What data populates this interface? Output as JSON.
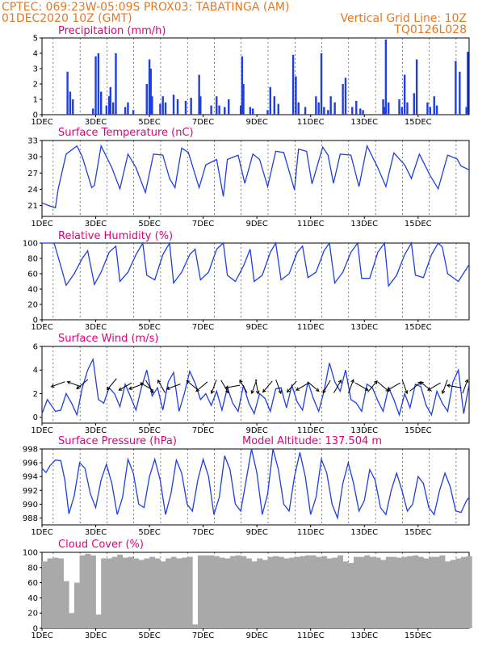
{
  "header": {
    "line1_left": "CPTEC:   069:23W-05:09S   PROX03: TABATINGA (AM)",
    "line2_left": "01DEC2020 10Z (GMT)",
    "line2_right": "Vertical Grid Line: 10Z",
    "line3_right": "TQ0126L028"
  },
  "colors": {
    "header": "#e87722",
    "panel_title": "#e0007a",
    "series": "#1f3fe0",
    "cloud": "#a9a9a9",
    "arrow": "#000000"
  },
  "chart_data": [
    {
      "type": "bar",
      "title": "Precipitation (mm/h)",
      "ylim": [
        0,
        5
      ],
      "yticks": [
        0,
        1,
        2,
        3,
        4,
        5
      ],
      "xlim": [
        1,
        16.9
      ],
      "xticks": [
        "1DEC",
        "3DEC",
        "5DEC",
        "7DEC",
        "9DEC",
        "11DEC",
        "13DEC",
        "15DEC"
      ],
      "x": [
        1.95,
        2.05,
        2.15,
        2.9,
        3.0,
        3.1,
        3.2,
        3.4,
        3.5,
        3.55,
        3.65,
        3.75,
        4.1,
        4.2,
        4.4,
        4.9,
        5.0,
        5.05,
        5.1,
        5.4,
        5.5,
        5.6,
        5.9,
        6.05,
        6.35,
        6.55,
        6.85,
        6.9,
        7.3,
        7.5,
        7.6,
        7.8,
        7.95,
        8.4,
        8.45,
        8.5,
        8.75,
        8.85,
        9.4,
        9.5,
        9.65,
        9.8,
        10.35,
        10.45,
        10.55,
        10.8,
        11.2,
        11.3,
        11.4,
        11.5,
        11.65,
        11.75,
        11.9,
        12.2,
        12.3,
        12.55,
        12.7,
        12.85,
        12.95,
        13.7,
        13.75,
        13.8,
        13.9,
        14.3,
        14.4,
        14.5,
        14.6,
        14.85,
        14.95,
        15.35,
        15.45,
        15.6,
        15.7,
        16.4,
        16.55,
        16.8,
        16.85
      ],
      "values": [
        2.8,
        1.5,
        1.0,
        0.4,
        3.8,
        4.0,
        1.5,
        0.6,
        1.2,
        1.8,
        0.8,
        4.0,
        0.5,
        0.8,
        0.3,
        2.0,
        3.6,
        3.0,
        1.2,
        0.7,
        1.2,
        0.8,
        1.3,
        1.0,
        0.9,
        1.1,
        2.6,
        1.2,
        0.6,
        1.2,
        0.6,
        0.5,
        1.0,
        0.6,
        3.8,
        2.0,
        0.5,
        0.4,
        0.3,
        1.8,
        1.2,
        0.7,
        3.9,
        2.5,
        0.8,
        0.5,
        1.2,
        0.8,
        4.0,
        0.5,
        0.3,
        1.2,
        0.8,
        2.0,
        2.4,
        0.5,
        0.9,
        0.4,
        0.3,
        1.0,
        0.5,
        4.9,
        0.8,
        1.0,
        0.5,
        2.6,
        0.8,
        1.4,
        3.6,
        0.8,
        0.5,
        1.2,
        0.6,
        3.5,
        2.8,
        0.5,
        4.1
      ]
    },
    {
      "type": "line",
      "title": "Surface Temperature (nC)",
      "ylim": [
        19,
        33
      ],
      "yticks": [
        21,
        24,
        27,
        30,
        33
      ],
      "xlim": [
        1,
        16.9
      ],
      "xticks": [
        "1DEC",
        "3DEC",
        "5DEC",
        "7DEC",
        "9DEC",
        "11DEC",
        "13DEC",
        "15DEC"
      ],
      "x": [
        1.0,
        1.25,
        1.5,
        1.6,
        1.9,
        2.3,
        2.5,
        2.85,
        2.95,
        3.2,
        3.6,
        3.9,
        4.2,
        4.5,
        4.85,
        5.15,
        5.5,
        5.75,
        5.95,
        6.2,
        6.45,
        6.85,
        7.1,
        7.5,
        7.75,
        7.9,
        8.3,
        8.55,
        8.85,
        9.1,
        9.4,
        9.7,
        10.0,
        10.4,
        10.55,
        10.85,
        11.05,
        11.45,
        11.65,
        11.85,
        12.1,
        12.5,
        12.8,
        13.1,
        13.5,
        13.8,
        14.1,
        14.5,
        14.75,
        15.05,
        15.45,
        15.75,
        16.1,
        16.45,
        16.6,
        16.9
      ],
      "values": [
        21.5,
        21.0,
        20.6,
        24.0,
        30.5,
        32.0,
        30.0,
        24.3,
        24.7,
        32.0,
        28.0,
        24.1,
        30.5,
        28.0,
        23.4,
        30.5,
        30.3,
        26.0,
        24.3,
        31.6,
        30.8,
        24.3,
        28.5,
        29.5,
        22.7,
        29.5,
        30.3,
        25.1,
        30.5,
        29.5,
        24.5,
        31.0,
        30.8,
        23.9,
        31.4,
        31.0,
        25.0,
        31.8,
        30.3,
        25.1,
        30.5,
        30.3,
        24.5,
        32.0,
        28.0,
        24.5,
        30.7,
        28.5,
        26.0,
        30.5,
        26.5,
        24.1,
        30.3,
        29.6,
        28.3,
        27.6
      ]
    },
    {
      "type": "line",
      "title": "Relative Humidity (%)",
      "ylim": [
        0,
        100
      ],
      "yticks": [
        0,
        20,
        40,
        60,
        80,
        100
      ],
      "xlim": [
        1,
        16.9
      ],
      "xticks": [
        "1DEC",
        "3DEC",
        "5DEC",
        "7DEC",
        "9DEC",
        "11DEC",
        "13DEC",
        "15DEC"
      ],
      "x": [
        1.0,
        1.3,
        1.45,
        1.7,
        1.9,
        2.2,
        2.5,
        2.7,
        2.95,
        3.2,
        3.5,
        3.75,
        3.9,
        4.2,
        4.5,
        4.75,
        4.9,
        5.2,
        5.5,
        5.75,
        5.9,
        6.2,
        6.5,
        6.7,
        6.9,
        7.2,
        7.5,
        7.75,
        7.9,
        8.2,
        8.5,
        8.75,
        8.9,
        9.2,
        9.5,
        9.7,
        9.9,
        10.2,
        10.5,
        10.7,
        10.9,
        11.2,
        11.5,
        11.7,
        11.9,
        12.2,
        12.5,
        12.75,
        12.9,
        13.2,
        13.5,
        13.75,
        13.9,
        14.2,
        14.5,
        14.75,
        14.9,
        15.2,
        15.5,
        15.75,
        15.9,
        16.1,
        16.5,
        16.9
      ],
      "values": [
        100,
        100,
        100,
        70,
        45,
        60,
        80,
        90,
        46,
        62,
        88,
        96,
        50,
        62,
        85,
        100,
        58,
        52,
        85,
        100,
        48,
        62,
        85,
        92,
        52,
        62,
        92,
        100,
        58,
        50,
        70,
        92,
        50,
        58,
        88,
        100,
        52,
        60,
        88,
        96,
        55,
        62,
        90,
        100,
        48,
        62,
        88,
        100,
        54,
        54,
        88,
        100,
        44,
        58,
        85,
        100,
        58,
        55,
        85,
        100,
        95,
        60,
        50,
        72
      ]
    },
    {
      "type": "line",
      "title": "Surface Wind (m/s)",
      "ylim": [
        -0.5,
        6
      ],
      "yticks": [
        0,
        2,
        4,
        6
      ],
      "xlim": [
        1,
        16.9
      ],
      "xticks": [
        "1DEC",
        "3DEC",
        "5DEC",
        "7DEC",
        "9DEC",
        "11DEC",
        "13DEC",
        "15DEC"
      ],
      "x": [
        1.0,
        1.2,
        1.5,
        1.7,
        1.9,
        2.1,
        2.3,
        2.5,
        2.7,
        2.9,
        3.1,
        3.3,
        3.5,
        3.7,
        3.9,
        4.1,
        4.3,
        4.5,
        4.7,
        4.9,
        5.1,
        5.3,
        5.5,
        5.7,
        5.9,
        6.1,
        6.3,
        6.5,
        6.7,
        6.9,
        7.1,
        7.3,
        7.5,
        7.7,
        7.9,
        8.1,
        8.3,
        8.5,
        8.7,
        8.9,
        9.1,
        9.3,
        9.5,
        9.7,
        9.9,
        10.1,
        10.3,
        10.5,
        10.7,
        10.9,
        11.1,
        11.3,
        11.5,
        11.7,
        11.9,
        12.1,
        12.3,
        12.5,
        12.7,
        12.9,
        13.1,
        13.3,
        13.5,
        13.7,
        13.9,
        14.1,
        14.3,
        14.5,
        14.7,
        14.9,
        15.1,
        15.3,
        15.5,
        15.7,
        15.9,
        16.1,
        16.3,
        16.5,
        16.7,
        16.9
      ],
      "values": [
        0.3,
        1.5,
        0.5,
        0.6,
        2.0,
        1.2,
        0.2,
        2.5,
        4.0,
        4.9,
        1.5,
        1.2,
        2.5,
        2.0,
        0.9,
        2.8,
        1.7,
        0.6,
        2.5,
        4.0,
        1.8,
        2.5,
        0.6,
        3.0,
        3.8,
        0.5,
        2.0,
        3.9,
        2.9,
        1.5,
        2.0,
        1.0,
        2.2,
        0.6,
        2.5,
        1.2,
        0.5,
        2.7,
        1.2,
        0.3,
        2.0,
        1.6,
        0.5,
        2.4,
        2.5,
        0.8,
        2.7,
        1.3,
        0.6,
        3.0,
        1.6,
        0.5,
        2.2,
        4.6,
        3.0,
        2.2,
        4.0,
        1.5,
        1.2,
        0.5,
        2.8,
        2.5,
        1.4,
        0.5,
        2.5,
        1.5,
        0.2,
        2.0,
        0.8,
        2.8,
        2.6,
        1.0,
        0.2,
        2.2,
        1.2,
        0.5,
        3.0,
        4.0,
        0.3,
        2.8
      ]
    },
    {
      "type": "line",
      "title": "Surface Pressure (hPa)",
      "annotation": "Model Altitude: 137.504  m",
      "ylim": [
        987,
        998
      ],
      "yticks": [
        988,
        990,
        992,
        994,
        996,
        998
      ],
      "xlim": [
        1,
        16.9
      ],
      "xticks": [
        "1DEC",
        "3DEC",
        "5DEC",
        "7DEC",
        "9DEC",
        "11DEC",
        "13DEC",
        "15DEC"
      ],
      "x": [
        1.0,
        1.15,
        1.3,
        1.5,
        1.7,
        1.85,
        2.0,
        2.2,
        2.4,
        2.6,
        2.8,
        3.0,
        3.2,
        3.4,
        3.6,
        3.8,
        4.0,
        4.2,
        4.4,
        4.6,
        4.8,
        5.0,
        5.2,
        5.4,
        5.6,
        5.8,
        6.0,
        6.2,
        6.4,
        6.6,
        6.8,
        7.0,
        7.2,
        7.4,
        7.6,
        7.8,
        8.0,
        8.2,
        8.4,
        8.6,
        8.8,
        9.0,
        9.2,
        9.4,
        9.6,
        9.8,
        10.0,
        10.2,
        10.4,
        10.6,
        10.8,
        11.0,
        11.2,
        11.4,
        11.6,
        11.8,
        12.0,
        12.2,
        12.4,
        12.6,
        12.8,
        13.0,
        13.2,
        13.4,
        13.6,
        13.8,
        14.0,
        14.2,
        14.4,
        14.6,
        14.8,
        15.0,
        15.2,
        15.4,
        15.6,
        15.8,
        16.0,
        16.2,
        16.4,
        16.6,
        16.8,
        16.9
      ],
      "values": [
        995.2,
        994.6,
        995.6,
        996.4,
        996.3,
        993.5,
        988.6,
        991.2,
        996.0,
        995.2,
        991.5,
        989.5,
        993.5,
        995.8,
        993.0,
        988.5,
        991.0,
        996.5,
        994.5,
        990.0,
        989.5,
        994.0,
        996.5,
        993.5,
        988.5,
        991.5,
        996.4,
        994.5,
        990.0,
        989.0,
        993.5,
        996.5,
        994.0,
        988.5,
        991.0,
        997.0,
        995.0,
        990.0,
        989.0,
        993.5,
        998.0,
        994.5,
        988.5,
        991.5,
        998.0,
        995.0,
        990.0,
        989.0,
        994.0,
        997.5,
        994.0,
        988.5,
        991.0,
        996.5,
        994.5,
        990.0,
        988.0,
        993.0,
        996.0,
        993.0,
        989.0,
        990.5,
        995.0,
        993.5,
        989.5,
        988.5,
        992.0,
        994.5,
        992.0,
        989.0,
        990.0,
        994.0,
        993.0,
        989.5,
        988.5,
        992.0,
        994.5,
        992.5,
        989.0,
        988.8,
        990.5,
        991.0
      ]
    },
    {
      "type": "bar",
      "title": "Cloud Cover (%)",
      "ylim": [
        0,
        100
      ],
      "yticks": [
        0,
        20,
        40,
        60,
        80,
        100
      ],
      "xlim": [
        1,
        16.9
      ],
      "xticks": [
        "1DEC",
        "3DEC",
        "5DEC",
        "7DEC",
        "9DEC",
        "11DEC",
        "13DEC",
        "15DEC"
      ],
      "x": [
        1.0,
        1.2,
        1.4,
        1.6,
        1.8,
        2.0,
        2.2,
        2.4,
        2.6,
        2.8,
        3.0,
        3.2,
        3.4,
        3.6,
        3.8,
        4.0,
        4.2,
        4.4,
        4.6,
        4.8,
        5.0,
        5.2,
        5.4,
        5.6,
        5.8,
        6.0,
        6.2,
        6.4,
        6.6,
        6.8,
        7.0,
        7.2,
        7.4,
        7.6,
        7.8,
        8.0,
        8.2,
        8.4,
        8.6,
        8.8,
        9.0,
        9.2,
        9.4,
        9.6,
        9.8,
        10.0,
        10.2,
        10.4,
        10.6,
        10.8,
        11.0,
        11.2,
        11.4,
        11.6,
        11.8,
        12.0,
        12.2,
        12.4,
        12.6,
        12.8,
        13.0,
        13.2,
        13.4,
        13.6,
        13.8,
        14.0,
        14.2,
        14.4,
        14.6,
        14.8,
        15.0,
        15.2,
        15.4,
        15.6,
        15.8,
        16.0,
        16.2,
        16.4,
        16.6,
        16.8
      ],
      "values": [
        88,
        92,
        93,
        92,
        62,
        20,
        60,
        96,
        98,
        96,
        18,
        92,
        92,
        94,
        97,
        93,
        94,
        92,
        90,
        92,
        94,
        92,
        88,
        92,
        94,
        92,
        93,
        94,
        5,
        96,
        96,
        96,
        95,
        93,
        92,
        95,
        96,
        95,
        92,
        88,
        92,
        90,
        94,
        95,
        94,
        92,
        93,
        94,
        95,
        96,
        96,
        94,
        95,
        92,
        93,
        96,
        88,
        86,
        94,
        94,
        96,
        94,
        93,
        90,
        94,
        94,
        93,
        94,
        95,
        96,
        94,
        92,
        94,
        94,
        96,
        88,
        90,
        92,
        94,
        95
      ]
    }
  ],
  "wind_arrows": {
    "x": [
      1.6,
      2.2,
      2.5,
      3.6,
      4.1,
      4.5,
      4.9,
      5.0,
      5.45,
      5.9,
      6.6,
      6.95,
      7.4,
      7.8,
      8.1,
      8.5,
      8.9,
      9.0,
      9.4,
      9.8,
      10.3,
      10.7,
      11.1,
      11.6,
      12.0,
      12.5,
      12.9,
      13.3,
      13.7,
      14.1,
      14.5,
      14.9,
      15.3,
      15.6,
      16.0,
      16.35,
      16.75
    ],
    "values": [
      2.8,
      2.8,
      2.8,
      2.8,
      2.6,
      2.6,
      2.6,
      2.6,
      2.6,
      2.6,
      2.7,
      2.6,
      2.6,
      2.6,
      2.6,
      2.6,
      2.6,
      2.6,
      2.6,
      2.6,
      2.6,
      2.6,
      2.6,
      2.6,
      2.6,
      2.6,
      2.6,
      2.6,
      2.6,
      2.6,
      2.6,
      2.6,
      2.6,
      2.6,
      2.6,
      2.6,
      2.6
    ],
    "dir_deg": [
      200,
      160,
      220,
      230,
      210,
      200,
      150,
      300,
      120,
      200,
      140,
      220,
      250,
      300,
      190,
      120,
      250,
      280,
      230,
      290,
      230,
      210,
      320,
      240,
      60,
      70,
      330,
      50,
      320,
      210,
      290,
      40,
      140,
      210,
      250,
      170,
      70
    ]
  }
}
